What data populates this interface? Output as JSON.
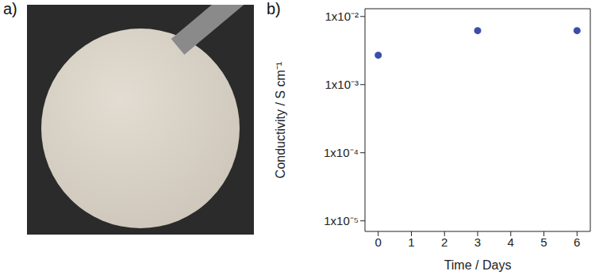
{
  "panel_labels": [
    "a)",
    "b)"
  ],
  "chart_data": {
    "type": "scatter",
    "x": [
      0,
      3,
      6
    ],
    "values": [
      0.0027,
      0.0062,
      0.0062
    ],
    "color": "#3b4fa8",
    "marker": "circle",
    "x_label": "Time / Days",
    "y_label": "Conductivity / S cm⁻¹",
    "log": "y",
    "grid": false,
    "xlim": [
      -0.4,
      6.4
    ],
    "xticks": [
      0,
      1,
      2,
      3,
      4,
      5,
      6
    ],
    "ylim": [
      7e-06,
      0.013
    ],
    "yticks": [
      {
        "value": 1e-05,
        "label": "1x10⁻⁵"
      },
      {
        "value": 0.0001,
        "label": "1x10⁻⁴"
      },
      {
        "value": 0.001,
        "label": "1x10⁻³"
      },
      {
        "value": 0.01,
        "label": "1x10⁻²"
      }
    ]
  }
}
